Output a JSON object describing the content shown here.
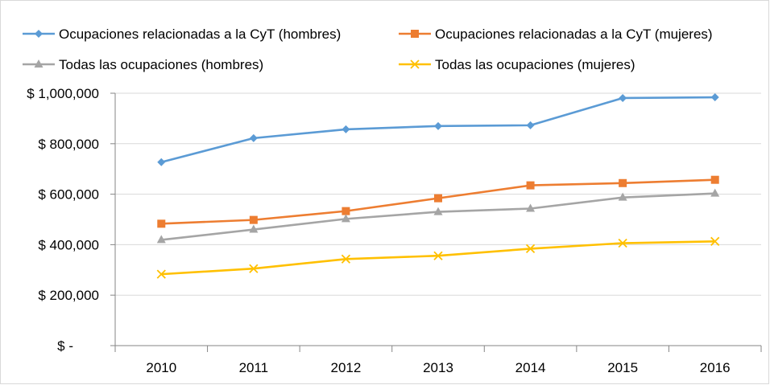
{
  "chart_data": {
    "type": "line",
    "title": "",
    "xlabel": "",
    "ylabel": "",
    "categories": [
      "2010",
      "2011",
      "2012",
      "2013",
      "2014",
      "2015",
      "2016"
    ],
    "ylim": [
      0,
      1000000
    ],
    "yticks": [
      0,
      200000,
      400000,
      600000,
      800000,
      1000000
    ],
    "ytick_labels": [
      "$  -",
      "$ 200,000",
      "$ 400,000",
      "$ 600,000",
      "$ 800,000",
      "$ 1,000,000"
    ],
    "grid": true,
    "legend_position": "top",
    "series": [
      {
        "name": "Ocupaciones relacionadas a la CyT (hombres)",
        "color": "#5B9BD5",
        "marker": "diamond",
        "values": [
          727000,
          822000,
          857000,
          870000,
          873000,
          981000,
          984000
        ]
      },
      {
        "name": "Ocupaciones relacionadas a la CyT (mujeres)",
        "color": "#ED7D31",
        "marker": "square",
        "values": [
          483000,
          498000,
          533000,
          584000,
          635000,
          644000,
          657000
        ]
      },
      {
        "name": "Todas las ocupaciones (hombres)",
        "color": "#A5A5A5",
        "marker": "triangle",
        "values": [
          419000,
          460000,
          502000,
          530000,
          543000,
          587000,
          603000
        ]
      },
      {
        "name": "Todas las ocupaciones (mujeres)",
        "color": "#FFC000",
        "marker": "x",
        "values": [
          283000,
          305000,
          343000,
          356000,
          384000,
          406000,
          413000
        ]
      }
    ]
  }
}
